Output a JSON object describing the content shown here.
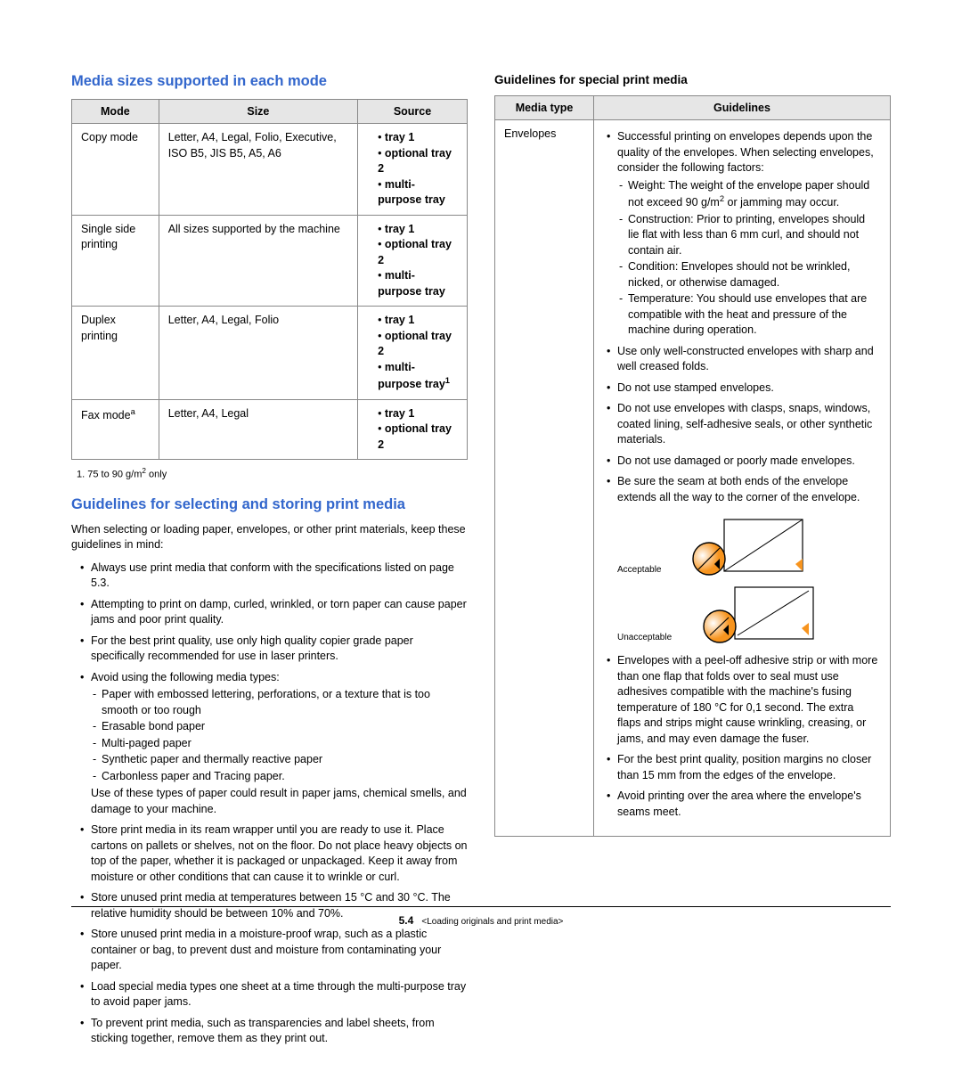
{
  "left": {
    "heading1": "Media sizes supported in each mode",
    "table1": {
      "headers": [
        "Mode",
        "Size",
        "Source"
      ],
      "rows": [
        {
          "mode": "Copy mode",
          "size": "Letter, A4, Legal, Folio, Executive, ISO B5, JIS B5, A5, A6",
          "sources": [
            "tray 1",
            "optional tray 2",
            "multi-purpose tray"
          ]
        },
        {
          "mode": "Single side printing",
          "size": "All sizes supported by the machine",
          "sources": [
            "tray 1",
            "optional tray 2",
            "multi-purpose tray"
          ]
        },
        {
          "mode": "Duplex printing",
          "size": "Letter, A4, Legal, Folio",
          "sources": [
            "tray 1",
            "optional tray 2",
            "multi-purpose tray"
          ],
          "last_sup": "1"
        },
        {
          "mode_html": "Fax mode",
          "mode_sup": "a",
          "size": "Letter, A4, Legal",
          "sources": [
            "tray 1",
            "optional tray 2"
          ]
        }
      ]
    },
    "footnote_pre": "1. 75 to 90 g/m",
    "footnote_sup": "2",
    "footnote_post": " only",
    "heading2": "Guidelines for selecting and storing print media",
    "intro": "When selecting or loading paper, envelopes, or other print materials, keep these guidelines in mind:",
    "bullets": [
      "Always use print media that conform with the specifications listed on page 5.3.",
      "Attempting to print on damp, curled, wrinkled, or torn paper can cause paper jams and poor print quality.",
      "For the best print quality, use only high quality copier grade paper specifically recommended for use in laser printers.",
      {
        "text": "Avoid using the following media types:",
        "sub": [
          "Paper with embossed lettering, perforations, or a texture that is too smooth or too rough",
          "Erasable bond paper",
          "Multi-paged paper",
          "Synthetic paper and thermally reactive paper",
          "Carbonless paper and Tracing paper."
        ],
        "tail": "Use of these types of paper could result in paper jams, chemical smells, and damage to your machine."
      },
      "Store print media in its ream wrapper until you are ready to use it. Place cartons on pallets or shelves, not on the floor. Do not place heavy objects on top of the paper, whether it is packaged or unpackaged. Keep it away from moisture or other conditions that can cause it to wrinkle or curl.",
      "Store unused print media at temperatures between 15 °C and 30 °C. The relative humidity should be between 10% and 70%.",
      "Store unused print media in a moisture-proof wrap, such as a plastic container or bag, to prevent dust and moisture from contaminating your paper.",
      "Load special media types one sheet at a time through the multi-purpose tray to avoid paper jams.",
      "To prevent print media, such as transparencies and label sheets, from sticking together, remove them as they print out."
    ]
  },
  "right": {
    "heading": "Guidelines for special print media",
    "table_headers": [
      "Media type",
      "Guidelines"
    ],
    "media_type": "Envelopes",
    "lead": "Successful printing on envelopes depends upon the quality of the envelopes. When selecting envelopes, consider the following factors:",
    "factors": [
      {
        "pre": "Weight: The weight of the envelope paper should not exceed 90 g/m",
        "sup": "2",
        "post": " or jamming may occur."
      },
      "Construction: Prior to printing, envelopes should lie flat with less than 6 mm curl, and should not contain air.",
      "Condition: Envelopes should not be wrinkled, nicked, or otherwise damaged.",
      "Temperature: You should use envelopes that are compatible with the heat and pressure of the machine during operation."
    ],
    "bullets_top": [
      "Use only well-constructed envelopes with sharp and well creased folds.",
      "Do not use stamped envelopes.",
      "Do not use envelopes with clasps, snaps, windows, coated lining, self-adhesive seals, or other synthetic materials.",
      "Do not use damaged or poorly made envelopes.",
      "Be sure the seam at both ends of the envelope extends all the way to the corner of the envelope."
    ],
    "diagram_labels": {
      "acceptable": "Acceptable",
      "unacceptable": "Unacceptable"
    },
    "bullets_bottom": [
      "Envelopes with a peel-off adhesive strip or with more than one flap that folds over to seal must use adhesives compatible with the machine's fusing temperature of 180 °C for 0,1 second. The extra flaps and strips might cause wrinkling, creasing, or jams, and may even damage the fuser.",
      "For the best print quality, position margins no closer than 15 mm from the edges of the envelope.",
      "Avoid printing over the area where the envelope's seams meet."
    ]
  },
  "footer": {
    "page": "5.4",
    "title": "<Loading originals and print media>"
  },
  "colors": {
    "heading": "#3266cc",
    "accent": "#f7941e"
  }
}
